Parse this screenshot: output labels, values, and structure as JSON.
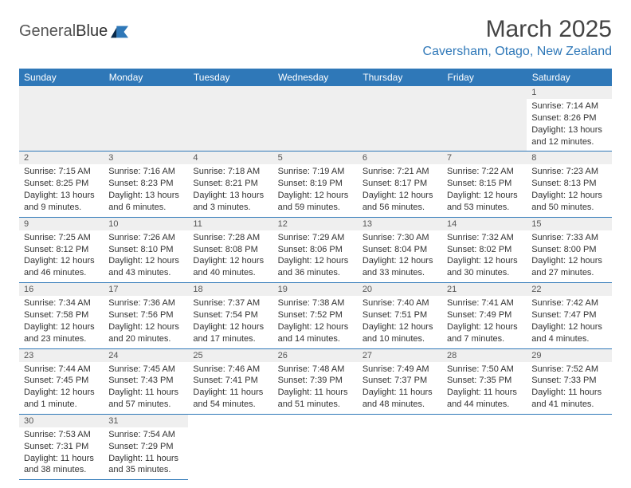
{
  "header": {
    "logo_general": "General",
    "logo_blue": "Blue",
    "month_title": "March 2025",
    "location": "Caversham, Otago, New Zealand"
  },
  "colors": {
    "header_bg": "#2f78b8",
    "daynum_bg": "#efefef",
    "border": "#2f78b8"
  },
  "weekdays": [
    "Sunday",
    "Monday",
    "Tuesday",
    "Wednesday",
    "Thursday",
    "Friday",
    "Saturday"
  ],
  "weeks": [
    [
      null,
      null,
      null,
      null,
      null,
      null,
      {
        "n": "1",
        "sr": "Sunrise: 7:14 AM",
        "ss": "Sunset: 8:26 PM",
        "d1": "Daylight: 13 hours",
        "d2": "and 12 minutes."
      }
    ],
    [
      {
        "n": "2",
        "sr": "Sunrise: 7:15 AM",
        "ss": "Sunset: 8:25 PM",
        "d1": "Daylight: 13 hours",
        "d2": "and 9 minutes."
      },
      {
        "n": "3",
        "sr": "Sunrise: 7:16 AM",
        "ss": "Sunset: 8:23 PM",
        "d1": "Daylight: 13 hours",
        "d2": "and 6 minutes."
      },
      {
        "n": "4",
        "sr": "Sunrise: 7:18 AM",
        "ss": "Sunset: 8:21 PM",
        "d1": "Daylight: 13 hours",
        "d2": "and 3 minutes."
      },
      {
        "n": "5",
        "sr": "Sunrise: 7:19 AM",
        "ss": "Sunset: 8:19 PM",
        "d1": "Daylight: 12 hours",
        "d2": "and 59 minutes."
      },
      {
        "n": "6",
        "sr": "Sunrise: 7:21 AM",
        "ss": "Sunset: 8:17 PM",
        "d1": "Daylight: 12 hours",
        "d2": "and 56 minutes."
      },
      {
        "n": "7",
        "sr": "Sunrise: 7:22 AM",
        "ss": "Sunset: 8:15 PM",
        "d1": "Daylight: 12 hours",
        "d2": "and 53 minutes."
      },
      {
        "n": "8",
        "sr": "Sunrise: 7:23 AM",
        "ss": "Sunset: 8:13 PM",
        "d1": "Daylight: 12 hours",
        "d2": "and 50 minutes."
      }
    ],
    [
      {
        "n": "9",
        "sr": "Sunrise: 7:25 AM",
        "ss": "Sunset: 8:12 PM",
        "d1": "Daylight: 12 hours",
        "d2": "and 46 minutes."
      },
      {
        "n": "10",
        "sr": "Sunrise: 7:26 AM",
        "ss": "Sunset: 8:10 PM",
        "d1": "Daylight: 12 hours",
        "d2": "and 43 minutes."
      },
      {
        "n": "11",
        "sr": "Sunrise: 7:28 AM",
        "ss": "Sunset: 8:08 PM",
        "d1": "Daylight: 12 hours",
        "d2": "and 40 minutes."
      },
      {
        "n": "12",
        "sr": "Sunrise: 7:29 AM",
        "ss": "Sunset: 8:06 PM",
        "d1": "Daylight: 12 hours",
        "d2": "and 36 minutes."
      },
      {
        "n": "13",
        "sr": "Sunrise: 7:30 AM",
        "ss": "Sunset: 8:04 PM",
        "d1": "Daylight: 12 hours",
        "d2": "and 33 minutes."
      },
      {
        "n": "14",
        "sr": "Sunrise: 7:32 AM",
        "ss": "Sunset: 8:02 PM",
        "d1": "Daylight: 12 hours",
        "d2": "and 30 minutes."
      },
      {
        "n": "15",
        "sr": "Sunrise: 7:33 AM",
        "ss": "Sunset: 8:00 PM",
        "d1": "Daylight: 12 hours",
        "d2": "and 27 minutes."
      }
    ],
    [
      {
        "n": "16",
        "sr": "Sunrise: 7:34 AM",
        "ss": "Sunset: 7:58 PM",
        "d1": "Daylight: 12 hours",
        "d2": "and 23 minutes."
      },
      {
        "n": "17",
        "sr": "Sunrise: 7:36 AM",
        "ss": "Sunset: 7:56 PM",
        "d1": "Daylight: 12 hours",
        "d2": "and 20 minutes."
      },
      {
        "n": "18",
        "sr": "Sunrise: 7:37 AM",
        "ss": "Sunset: 7:54 PM",
        "d1": "Daylight: 12 hours",
        "d2": "and 17 minutes."
      },
      {
        "n": "19",
        "sr": "Sunrise: 7:38 AM",
        "ss": "Sunset: 7:52 PM",
        "d1": "Daylight: 12 hours",
        "d2": "and 14 minutes."
      },
      {
        "n": "20",
        "sr": "Sunrise: 7:40 AM",
        "ss": "Sunset: 7:51 PM",
        "d1": "Daylight: 12 hours",
        "d2": "and 10 minutes."
      },
      {
        "n": "21",
        "sr": "Sunrise: 7:41 AM",
        "ss": "Sunset: 7:49 PM",
        "d1": "Daylight: 12 hours",
        "d2": "and 7 minutes."
      },
      {
        "n": "22",
        "sr": "Sunrise: 7:42 AM",
        "ss": "Sunset: 7:47 PM",
        "d1": "Daylight: 12 hours",
        "d2": "and 4 minutes."
      }
    ],
    [
      {
        "n": "23",
        "sr": "Sunrise: 7:44 AM",
        "ss": "Sunset: 7:45 PM",
        "d1": "Daylight: 12 hours",
        "d2": "and 1 minute."
      },
      {
        "n": "24",
        "sr": "Sunrise: 7:45 AM",
        "ss": "Sunset: 7:43 PM",
        "d1": "Daylight: 11 hours",
        "d2": "and 57 minutes."
      },
      {
        "n": "25",
        "sr": "Sunrise: 7:46 AM",
        "ss": "Sunset: 7:41 PM",
        "d1": "Daylight: 11 hours",
        "d2": "and 54 minutes."
      },
      {
        "n": "26",
        "sr": "Sunrise: 7:48 AM",
        "ss": "Sunset: 7:39 PM",
        "d1": "Daylight: 11 hours",
        "d2": "and 51 minutes."
      },
      {
        "n": "27",
        "sr": "Sunrise: 7:49 AM",
        "ss": "Sunset: 7:37 PM",
        "d1": "Daylight: 11 hours",
        "d2": "and 48 minutes."
      },
      {
        "n": "28",
        "sr": "Sunrise: 7:50 AM",
        "ss": "Sunset: 7:35 PM",
        "d1": "Daylight: 11 hours",
        "d2": "and 44 minutes."
      },
      {
        "n": "29",
        "sr": "Sunrise: 7:52 AM",
        "ss": "Sunset: 7:33 PM",
        "d1": "Daylight: 11 hours",
        "d2": "and 41 minutes."
      }
    ],
    [
      {
        "n": "30",
        "sr": "Sunrise: 7:53 AM",
        "ss": "Sunset: 7:31 PM",
        "d1": "Daylight: 11 hours",
        "d2": "and 38 minutes."
      },
      {
        "n": "31",
        "sr": "Sunrise: 7:54 AM",
        "ss": "Sunset: 7:29 PM",
        "d1": "Daylight: 11 hours",
        "d2": "and 35 minutes."
      },
      null,
      null,
      null,
      null,
      null
    ]
  ]
}
